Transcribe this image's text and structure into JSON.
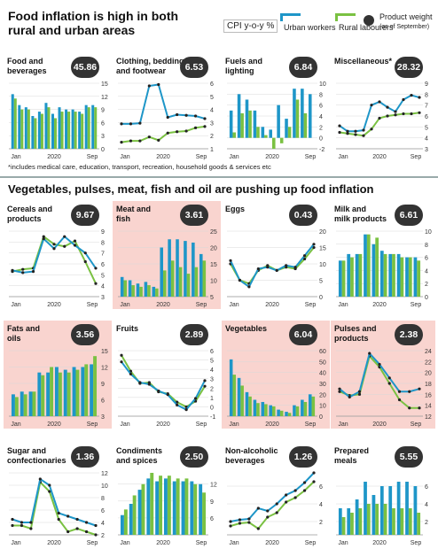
{
  "header": {
    "title": "Food inflation is high in both\nrural and urban areas"
  },
  "legend": {
    "cpi": "CPI y-o-y %",
    "urban": "Urban workers",
    "rural": "Rural labourers",
    "weight_main": "Product weight",
    "weight_sub": "(as of September)"
  },
  "footnote": "*includes medical care, education, transport, recreation, household goods & services etc",
  "section2": {
    "title": "Vegetables, pulses, meat, fish and oil are pushing up food inflation"
  },
  "colors": {
    "urban": "#1e96c8",
    "rural": "#7ac142",
    "pink": "#f9d4cf",
    "badge": "#333333",
    "dot": "#333333"
  },
  "chart_data": [
    {
      "id": "food",
      "type": "bar",
      "title": "Food and\nbeverages",
      "weight": "45.86",
      "pink": false,
      "yticks": [
        "0",
        "3",
        "6",
        "9",
        "12",
        "15"
      ],
      "ylim": [
        0,
        15
      ],
      "xlabels": [
        "Jan",
        "2020",
        "Sep"
      ],
      "urban": [
        12.5,
        10,
        9.5,
        7.5,
        8.5,
        10.5,
        8,
        9.5,
        9,
        9,
        8.5,
        10,
        10
      ],
      "rural": [
        11.5,
        9,
        9,
        7,
        8,
        9.5,
        7,
        8.5,
        8.5,
        8.5,
        8,
        9.5,
        9.5
      ]
    },
    {
      "id": "clothing",
      "type": "line",
      "title": "Clothing, bedding\nand footwear",
      "weight": "6.53",
      "pink": false,
      "yticks": [
        "1",
        "2",
        "3",
        "4",
        "5",
        "6"
      ],
      "ylim": [
        1,
        6
      ],
      "xlabels": [
        "Jan",
        "2020",
        "Sep"
      ],
      "urban": [
        2.9,
        2.9,
        2.95,
        5.8,
        5.9,
        3.4,
        3.6,
        3.55,
        3.5,
        3.3
      ],
      "rural": [
        1.5,
        1.6,
        1.6,
        1.9,
        1.65,
        2.2,
        2.3,
        2.35,
        2.6,
        2.7
      ]
    },
    {
      "id": "fuels",
      "type": "bar",
      "title": "Fuels and\nlighting",
      "weight": "6.84",
      "pink": false,
      "yticks": [
        "-2",
        "0",
        "2",
        "4",
        "6",
        "8",
        "10"
      ],
      "ylim": [
        -2,
        10
      ],
      "xlabels": [
        "Jan",
        "2020",
        "Sep"
      ],
      "urban": [
        5,
        8,
        7,
        5,
        2,
        1.5,
        6,
        3.5,
        9,
        9,
        8
      ],
      "rural": [
        1,
        4.5,
        5,
        2,
        0.5,
        -2,
        -1,
        2,
        7,
        4.5,
        null
      ]
    },
    {
      "id": "misc",
      "type": "line",
      "title": "Miscellaneous*",
      "weight": "28.32",
      "pink": false,
      "yticks": [
        "3",
        "4",
        "5",
        "6",
        "7",
        "8",
        "9"
      ],
      "ylim": [
        3,
        9
      ],
      "xlabels": [
        "Jan",
        "2020",
        "Sep"
      ],
      "urban": [
        5.1,
        4.6,
        4.6,
        4.7,
        7,
        7.3,
        6.8,
        6.4,
        7.5,
        7.9,
        7.7
      ],
      "rural": [
        4.5,
        4.4,
        4.3,
        4.2,
        4.8,
        5.8,
        6,
        6.1,
        6.2,
        6.2,
        6.3
      ]
    },
    {
      "id": "cereals",
      "type": "line",
      "title": "Cereals and\nproducts",
      "weight": "9.67",
      "pink": false,
      "yticks": [
        "3",
        "4",
        "5",
        "6",
        "7",
        "8",
        "9"
      ],
      "ylim": [
        3,
        9
      ],
      "xlabels": [
        "Jan",
        "2020",
        "Sep"
      ],
      "urban": [
        5.4,
        5.2,
        5.3,
        8.3,
        7.4,
        8.5,
        7.7,
        7,
        5.6
      ],
      "rural": [
        5.3,
        5.5,
        5.6,
        8.5,
        7.8,
        7.6,
        8.1,
        6.2,
        4.2
      ]
    },
    {
      "id": "meat",
      "type": "bar",
      "title": "Meat and\nfish",
      "weight": "3.61",
      "pink": true,
      "yticks": [
        "5",
        "10",
        "15",
        "20",
        "25"
      ],
      "ylim": [
        5,
        25
      ],
      "xlabels": [
        "Jan",
        "2020",
        "Sep"
      ],
      "urban": [
        11,
        10,
        9,
        9.5,
        8,
        20,
        22.5,
        22.5,
        22,
        21.5,
        18
      ],
      "rural": [
        10,
        8.5,
        8,
        8.5,
        7.5,
        13,
        16,
        14,
        12,
        14,
        16
      ]
    },
    {
      "id": "eggs",
      "type": "line",
      "title": "Eggs",
      "weight": "0.43",
      "pink": false,
      "yticks": [
        "0",
        "5",
        "10",
        "15",
        "20"
      ],
      "ylim": [
        0,
        20
      ],
      "xlabels": [
        "Jan",
        "2020",
        "Sep"
      ],
      "urban": [
        11,
        5,
        3,
        8.5,
        9,
        8,
        9.5,
        9,
        12.5,
        16
      ],
      "rural": [
        10,
        5,
        4,
        8,
        9.5,
        8,
        9,
        8.5,
        11.5,
        15
      ]
    },
    {
      "id": "milk",
      "type": "bar",
      "title": "Milk and\nmilk products",
      "weight": "6.61",
      "pink": false,
      "yticks": [
        "0",
        "2",
        "4",
        "6",
        "8",
        "10"
      ],
      "ylim": [
        0,
        10
      ],
      "xlabels": [
        "Jan",
        "2020",
        "Sep"
      ],
      "urban": [
        5.5,
        6.5,
        6.5,
        9.5,
        8,
        7,
        6.5,
        6.5,
        6,
        6
      ],
      "rural": [
        5.5,
        6,
        6.5,
        9.5,
        9,
        6.5,
        6.5,
        6,
        6,
        5.5
      ]
    },
    {
      "id": "fats",
      "type": "bar",
      "title": "Fats and\noils",
      "weight": "3.56",
      "pink": true,
      "yticks": [
        "3",
        "6",
        "9",
        "12",
        "15"
      ],
      "ylim": [
        3,
        15
      ],
      "xlabels": [
        "Jan",
        "2020",
        "Sep"
      ],
      "urban": [
        7,
        7.5,
        7.5,
        11,
        11,
        12,
        11.5,
        12,
        12,
        12.5
      ],
      "rural": [
        6.5,
        7,
        7.5,
        10.5,
        12,
        11,
        11,
        11.5,
        12.5,
        14
      ]
    },
    {
      "id": "fruits",
      "type": "line",
      "title": "Fruits",
      "weight": "2.89",
      "pink": false,
      "yticks": [
        "-1",
        "0",
        "1",
        "2",
        "3",
        "4",
        "5",
        "6"
      ],
      "ylim": [
        -1,
        6
      ],
      "xlabels": [
        "Jan",
        "2020",
        "Sep"
      ],
      "urban": [
        4.8,
        3.5,
        2.6,
        2.4,
        1.7,
        1.3,
        0.2,
        -0.3,
        0.9,
        2.8
      ],
      "rural": [
        5.5,
        3.8,
        2.5,
        2.6,
        1.6,
        1.4,
        0.5,
        0,
        0.6,
        2.2
      ]
    },
    {
      "id": "vegetables",
      "type": "bar",
      "title": "Vegetables",
      "weight": "6.04",
      "pink": true,
      "yticks": [
        "0",
        "10",
        "20",
        "30",
        "40",
        "50",
        "60"
      ],
      "ylim": [
        0,
        60
      ],
      "xlabels": [
        "Jan",
        "2020",
        "Sep"
      ],
      "urban": [
        52,
        35,
        22,
        15,
        13,
        10,
        6,
        4,
        10,
        15,
        20
      ],
      "rural": [
        38,
        28,
        18,
        12,
        11,
        9,
        5,
        3,
        9,
        13,
        18
      ]
    },
    {
      "id": "pulses",
      "type": "line",
      "title": "Pulses and\nproducts",
      "weight": "2.38",
      "pink": true,
      "yticks": [
        "12",
        "14",
        "16",
        "18",
        "20",
        "22",
        "24"
      ],
      "ylim": [
        12,
        24
      ],
      "xlabels": [
        "Jan",
        "2020",
        "Sep"
      ],
      "urban": [
        17,
        15.5,
        16.5,
        23.5,
        21.5,
        19,
        16.5,
        16.5,
        17
      ],
      "rural": [
        16.5,
        15.8,
        16,
        23,
        21,
        18,
        15,
        13.5,
        13.5
      ]
    },
    {
      "id": "sugar",
      "type": "line",
      "title": "Sugar and\nconfectionaries",
      "weight": "1.36",
      "pink": false,
      "yticks": [
        "2",
        "4",
        "6",
        "8",
        "10",
        "12"
      ],
      "ylim": [
        2,
        12
      ],
      "xlabels": [
        "Jan",
        "2020",
        "Sep"
      ],
      "urban": [
        4.5,
        4,
        4,
        11,
        10,
        5.5,
        5,
        4.5,
        4,
        3.5
      ],
      "rural": [
        3.5,
        3.5,
        3,
        10.5,
        9,
        4.5,
        2.5,
        3,
        2.5,
        2
      ]
    },
    {
      "id": "condiments",
      "type": "bar",
      "title": "Condiments\nand spices",
      "weight": "2.50",
      "pink": false,
      "yticks": [
        "6",
        "9",
        "12"
      ],
      "ylim": [
        3,
        14
      ],
      "xlabels": [
        "Jan",
        "2020",
        "Sep"
      ],
      "urban": [
        6.5,
        8.5,
        11,
        13,
        12.5,
        13,
        12.5,
        12.5,
        12.5,
        12
      ],
      "rural": [
        7.5,
        10,
        12,
        14,
        13.5,
        13.5,
        13,
        13,
        12,
        10.5
      ]
    },
    {
      "id": "nonalc",
      "type": "line",
      "title": "Non-alcoholic\nbeverages",
      "weight": "1.26",
      "pink": false,
      "yticks": [
        "2",
        "4",
        "6"
      ],
      "ylim": [
        0.5,
        7.5
      ],
      "xlabels": [
        "Jan",
        "2020",
        "Sep"
      ],
      "urban": [
        2,
        2.2,
        2.3,
        3.5,
        3.2,
        4,
        5,
        5.5,
        6.4,
        7.5
      ],
      "rural": [
        1.5,
        1.8,
        1.9,
        1.2,
        2.5,
        3,
        4.2,
        4.7,
        5.5,
        6.5
      ]
    },
    {
      "id": "prepared",
      "type": "bar",
      "title": "Prepared\nmeals",
      "weight": "5.55",
      "pink": false,
      "yticks": [
        "2",
        "4",
        "6"
      ],
      "ylim": [
        0.5,
        7.5
      ],
      "xlabels": [
        "Jan",
        "2020",
        "Sep"
      ],
      "urban": [
        3.5,
        3.5,
        4.5,
        6.5,
        5,
        6,
        6,
        6.5,
        6.5,
        6
      ],
      "rural": [
        2.5,
        3,
        3.5,
        4,
        4,
        4,
        3.5,
        3.5,
        3.5,
        3
      ]
    }
  ]
}
